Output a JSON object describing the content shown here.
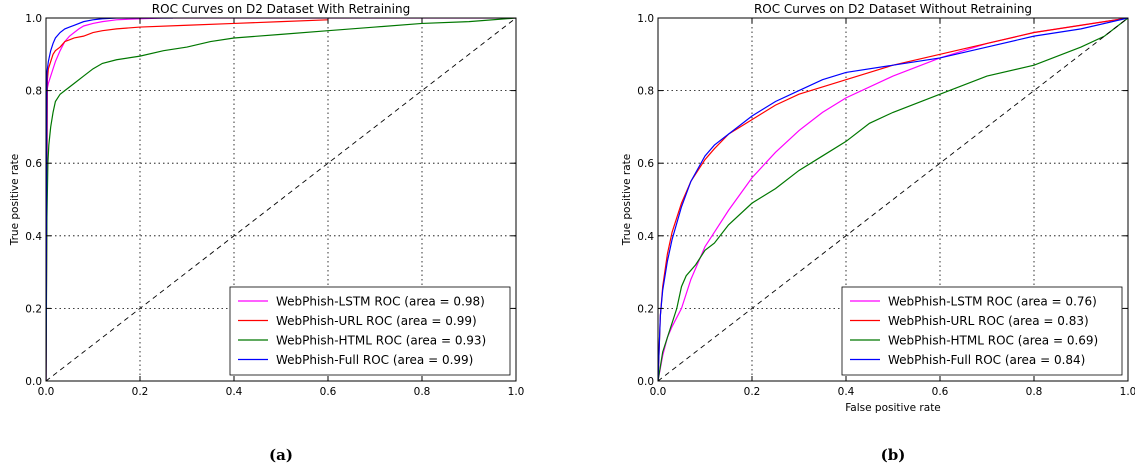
{
  "chart_data": [
    {
      "type": "line",
      "title": "ROC Curves on D2 Dataset With Retraining",
      "xlabel": "",
      "ylabel": "True positive rate",
      "xlim": [
        0,
        1
      ],
      "ylim": [
        0,
        1
      ],
      "x_ticks": [
        "0.0",
        "0.2",
        "0.4",
        "0.6",
        "0.8",
        "1.0"
      ],
      "y_ticks": [
        "0.0",
        "0.2",
        "0.4",
        "0.6",
        "0.8",
        "1.0"
      ],
      "grid": true,
      "legend_position": "lower-right",
      "caption": "(a)",
      "series": [
        {
          "name": "WebPhish-LSTM ROC (area = 0.98)",
          "color": "#ff00ff",
          "x": [
            0,
            0.002,
            0.005,
            0.01,
            0.015,
            0.02,
            0.03,
            0.04,
            0.05,
            0.06,
            0.07,
            0.08,
            0.1,
            0.12,
            0.15,
            0.2,
            0.25,
            0.3,
            1.0
          ],
          "y": [
            0,
            0.8,
            0.82,
            0.84,
            0.86,
            0.88,
            0.91,
            0.935,
            0.95,
            0.96,
            0.97,
            0.978,
            0.985,
            0.99,
            0.995,
            0.998,
            1.0,
            1.0,
            1.0
          ]
        },
        {
          "name": "WebPhish-URL ROC (area = 0.99)",
          "color": "#ff0000",
          "x": [
            0,
            0.003,
            0.005,
            0.01,
            0.015,
            0.02,
            0.03,
            0.04,
            0.05,
            0.06,
            0.08,
            0.1,
            0.12,
            0.15,
            0.2,
            0.3,
            0.4,
            0.5,
            0.6
          ],
          "y": [
            0,
            0.83,
            0.86,
            0.88,
            0.9,
            0.91,
            0.92,
            0.935,
            0.94,
            0.945,
            0.95,
            0.96,
            0.965,
            0.97,
            0.975,
            0.98,
            0.985,
            0.99,
            0.995
          ]
        },
        {
          "name": "WebPhish-HTML ROC (area = 0.93)",
          "color": "#007700",
          "x": [
            0,
            0.002,
            0.004,
            0.006,
            0.01,
            0.015,
            0.02,
            0.03,
            0.04,
            0.05,
            0.06,
            0.08,
            0.1,
            0.12,
            0.15,
            0.2,
            0.25,
            0.3,
            0.35,
            0.4,
            0.5,
            0.6,
            0.7,
            0.8,
            0.9,
            1.0
          ],
          "y": [
            0,
            0.45,
            0.6,
            0.65,
            0.7,
            0.74,
            0.77,
            0.79,
            0.8,
            0.81,
            0.82,
            0.84,
            0.86,
            0.875,
            0.885,
            0.895,
            0.91,
            0.92,
            0.935,
            0.945,
            0.955,
            0.965,
            0.975,
            0.985,
            0.99,
            1.0
          ]
        },
        {
          "name": "WebPhish-Full ROC (area = 0.99)",
          "color": "#0000ff",
          "x": [
            0,
            0.002,
            0.005,
            0.01,
            0.015,
            0.02,
            0.03,
            0.04,
            0.05,
            0.06,
            0.08,
            0.1,
            0.12,
            0.15,
            0.2,
            0.27
          ],
          "y": [
            0,
            0.85,
            0.88,
            0.91,
            0.93,
            0.945,
            0.96,
            0.97,
            0.975,
            0.98,
            0.99,
            0.995,
            0.998,
            1.0,
            1.0,
            1.0
          ]
        },
        {
          "name": "",
          "color": "#000000",
          "dashed": true,
          "x": [
            0,
            1
          ],
          "y": [
            0,
            1
          ]
        }
      ]
    },
    {
      "type": "line",
      "title": "ROC Curves on D2 Dataset Without Retraining",
      "xlabel": "False positive rate",
      "ylabel": "True positive rate",
      "xlim": [
        0,
        1
      ],
      "ylim": [
        0,
        1
      ],
      "x_ticks": [
        "0.0",
        "0.2",
        "0.4",
        "0.6",
        "0.8",
        "1.0"
      ],
      "y_ticks": [
        "0.0",
        "0.2",
        "0.4",
        "0.6",
        "0.8",
        "1.0"
      ],
      "grid": true,
      "legend_position": "lower-right",
      "caption": "(b)",
      "series": [
        {
          "name": "WebPhish-LSTM ROC (area = 0.76)",
          "color": "#ff00ff",
          "x": [
            0,
            0.01,
            0.02,
            0.03,
            0.05,
            0.07,
            0.1,
            0.12,
            0.15,
            0.2,
            0.25,
            0.3,
            0.35,
            0.4,
            0.5,
            0.6,
            0.7,
            0.8,
            0.9,
            1.0
          ],
          "y": [
            0,
            0.07,
            0.12,
            0.15,
            0.2,
            0.28,
            0.37,
            0.41,
            0.47,
            0.56,
            0.63,
            0.69,
            0.74,
            0.78,
            0.84,
            0.89,
            0.93,
            0.96,
            0.98,
            1.0
          ]
        },
        {
          "name": "WebPhish-URL ROC (area = 0.83)",
          "color": "#ff0000",
          "x": [
            0,
            0.005,
            0.01,
            0.02,
            0.03,
            0.05,
            0.07,
            0.1,
            0.12,
            0.15,
            0.2,
            0.25,
            0.3,
            0.35,
            0.4,
            0.5,
            0.6,
            0.7,
            0.8,
            0.9,
            1.0
          ],
          "y": [
            0,
            0.18,
            0.26,
            0.35,
            0.41,
            0.49,
            0.55,
            0.61,
            0.64,
            0.68,
            0.72,
            0.76,
            0.79,
            0.81,
            0.83,
            0.87,
            0.9,
            0.93,
            0.96,
            0.98,
            1.0
          ]
        },
        {
          "name": "WebPhish-HTML ROC (area = 0.69)",
          "color": "#007700",
          "x": [
            0,
            0.01,
            0.02,
            0.03,
            0.04,
            0.05,
            0.06,
            0.08,
            0.1,
            0.12,
            0.15,
            0.2,
            0.25,
            0.3,
            0.35,
            0.4,
            0.45,
            0.5,
            0.6,
            0.7,
            0.8,
            0.9,
            0.95,
            1.0
          ],
          "y": [
            0,
            0.08,
            0.12,
            0.16,
            0.2,
            0.26,
            0.29,
            0.32,
            0.36,
            0.38,
            0.43,
            0.49,
            0.53,
            0.58,
            0.62,
            0.66,
            0.71,
            0.74,
            0.79,
            0.84,
            0.87,
            0.92,
            0.95,
            1.0
          ]
        },
        {
          "name": "WebPhish-Full ROC (area = 0.84)",
          "color": "#0000ff",
          "x": [
            0,
            0.005,
            0.01,
            0.02,
            0.03,
            0.05,
            0.07,
            0.1,
            0.12,
            0.15,
            0.2,
            0.25,
            0.3,
            0.35,
            0.4,
            0.5,
            0.6,
            0.7,
            0.8,
            0.9,
            1.0
          ],
          "y": [
            0,
            0.18,
            0.25,
            0.33,
            0.39,
            0.48,
            0.55,
            0.62,
            0.65,
            0.68,
            0.73,
            0.77,
            0.8,
            0.83,
            0.85,
            0.87,
            0.89,
            0.92,
            0.95,
            0.97,
            1.0
          ]
        },
        {
          "name": "",
          "color": "#000000",
          "dashed": true,
          "x": [
            0,
            1
          ],
          "y": [
            0,
            1
          ]
        }
      ]
    }
  ]
}
